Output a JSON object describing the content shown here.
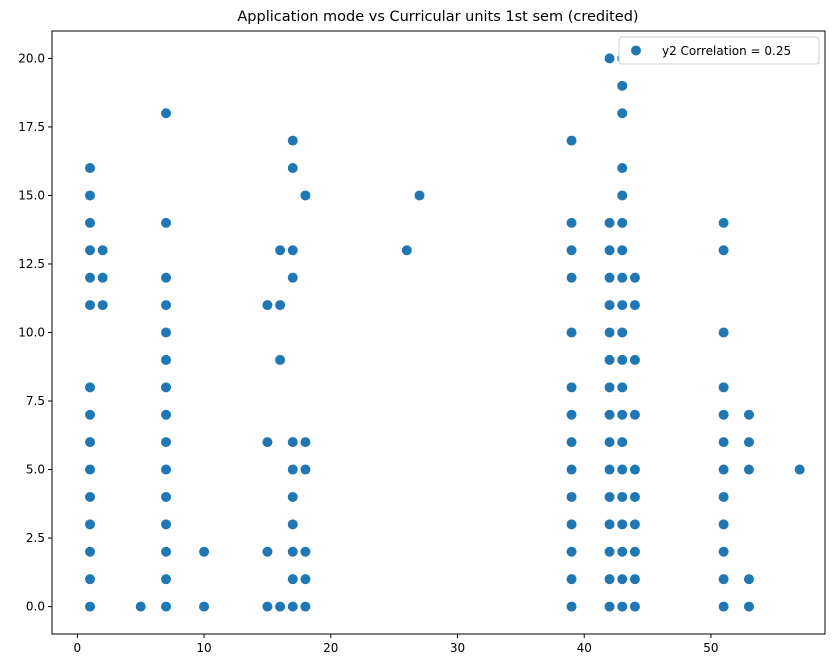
{
  "chart_data": {
    "type": "scatter",
    "title": "Application mode vs Curricular units 1st sem (credited)",
    "xlabel": "",
    "ylabel": "",
    "xlim": [
      -2,
      59
    ],
    "ylim": [
      -1,
      21
    ],
    "x_ticks": [
      0,
      10,
      20,
      30,
      40,
      50
    ],
    "y_ticks": [
      0.0,
      2.5,
      5.0,
      7.5,
      10.0,
      12.5,
      15.0,
      17.5,
      20.0
    ],
    "x_tick_labels": [
      "0",
      "10",
      "20",
      "30",
      "40",
      "50"
    ],
    "y_tick_labels": [
      "0.0",
      "2.5",
      "5.0",
      "7.5",
      "10.0",
      "12.5",
      "15.0",
      "17.5",
      "20.0"
    ],
    "grid": false,
    "legend_position": "top-right",
    "colors": {
      "series": "#1f77b4",
      "axes": "#000000",
      "legend_border": "#cccccc"
    },
    "series": [
      {
        "name": "y2 Correlation = 0.25",
        "points": [
          [
            1,
            0
          ],
          [
            1,
            1
          ],
          [
            1,
            2
          ],
          [
            1,
            3
          ],
          [
            1,
            4
          ],
          [
            1,
            5
          ],
          [
            1,
            6
          ],
          [
            1,
            7
          ],
          [
            1,
            8
          ],
          [
            1,
            11
          ],
          [
            1,
            12
          ],
          [
            1,
            13
          ],
          [
            1,
            14
          ],
          [
            1,
            15
          ],
          [
            1,
            16
          ],
          [
            2,
            11
          ],
          [
            2,
            12
          ],
          [
            2,
            13
          ],
          [
            5,
            0
          ],
          [
            7,
            0
          ],
          [
            7,
            1
          ],
          [
            7,
            2
          ],
          [
            7,
            3
          ],
          [
            7,
            4
          ],
          [
            7,
            5
          ],
          [
            7,
            6
          ],
          [
            7,
            7
          ],
          [
            7,
            8
          ],
          [
            7,
            9
          ],
          [
            7,
            10
          ],
          [
            7,
            11
          ],
          [
            7,
            12
          ],
          [
            7,
            14
          ],
          [
            7,
            18
          ],
          [
            10,
            0
          ],
          [
            10,
            2
          ],
          [
            15,
            0
          ],
          [
            15,
            2
          ],
          [
            15,
            6
          ],
          [
            15,
            11
          ],
          [
            16,
            0
          ],
          [
            16,
            9
          ],
          [
            16,
            11
          ],
          [
            16,
            13
          ],
          [
            17,
            0
          ],
          [
            17,
            1
          ],
          [
            17,
            2
          ],
          [
            17,
            3
          ],
          [
            17,
            4
          ],
          [
            17,
            5
          ],
          [
            17,
            6
          ],
          [
            17,
            12
          ],
          [
            17,
            13
          ],
          [
            17,
            16
          ],
          [
            17,
            17
          ],
          [
            18,
            0
          ],
          [
            18,
            1
          ],
          [
            18,
            2
          ],
          [
            18,
            5
          ],
          [
            18,
            6
          ],
          [
            18,
            15
          ],
          [
            26,
            13
          ],
          [
            27,
            15
          ],
          [
            39,
            0
          ],
          [
            39,
            1
          ],
          [
            39,
            2
          ],
          [
            39,
            3
          ],
          [
            39,
            4
          ],
          [
            39,
            5
          ],
          [
            39,
            6
          ],
          [
            39,
            7
          ],
          [
            39,
            8
          ],
          [
            39,
            10
          ],
          [
            39,
            12
          ],
          [
            39,
            13
          ],
          [
            39,
            14
          ],
          [
            39,
            17
          ],
          [
            42,
            0
          ],
          [
            42,
            1
          ],
          [
            42,
            2
          ],
          [
            42,
            3
          ],
          [
            42,
            4
          ],
          [
            42,
            5
          ],
          [
            42,
            6
          ],
          [
            42,
            7
          ],
          [
            42,
            8
          ],
          [
            42,
            9
          ],
          [
            42,
            10
          ],
          [
            42,
            11
          ],
          [
            42,
            12
          ],
          [
            42,
            13
          ],
          [
            42,
            14
          ],
          [
            42,
            20
          ],
          [
            43,
            0
          ],
          [
            43,
            1
          ],
          [
            43,
            2
          ],
          [
            43,
            3
          ],
          [
            43,
            4
          ],
          [
            43,
            5
          ],
          [
            43,
            6
          ],
          [
            43,
            7
          ],
          [
            43,
            8
          ],
          [
            43,
            9
          ],
          [
            43,
            10
          ],
          [
            43,
            11
          ],
          [
            43,
            12
          ],
          [
            43,
            13
          ],
          [
            43,
            14
          ],
          [
            43,
            15
          ],
          [
            43,
            16
          ],
          [
            43,
            18
          ],
          [
            43,
            19
          ],
          [
            43,
            20
          ],
          [
            44,
            0
          ],
          [
            44,
            1
          ],
          [
            44,
            2
          ],
          [
            44,
            3
          ],
          [
            44,
            4
          ],
          [
            44,
            5
          ],
          [
            44,
            7
          ],
          [
            44,
            9
          ],
          [
            44,
            11
          ],
          [
            44,
            12
          ],
          [
            51,
            0
          ],
          [
            51,
            1
          ],
          [
            51,
            2
          ],
          [
            51,
            3
          ],
          [
            51,
            4
          ],
          [
            51,
            5
          ],
          [
            51,
            6
          ],
          [
            51,
            7
          ],
          [
            51,
            8
          ],
          [
            51,
            10
          ],
          [
            51,
            13
          ],
          [
            51,
            14
          ],
          [
            53,
            0
          ],
          [
            53,
            1
          ],
          [
            53,
            5
          ],
          [
            53,
            6
          ],
          [
            53,
            7
          ],
          [
            57,
            5
          ]
        ]
      }
    ]
  }
}
